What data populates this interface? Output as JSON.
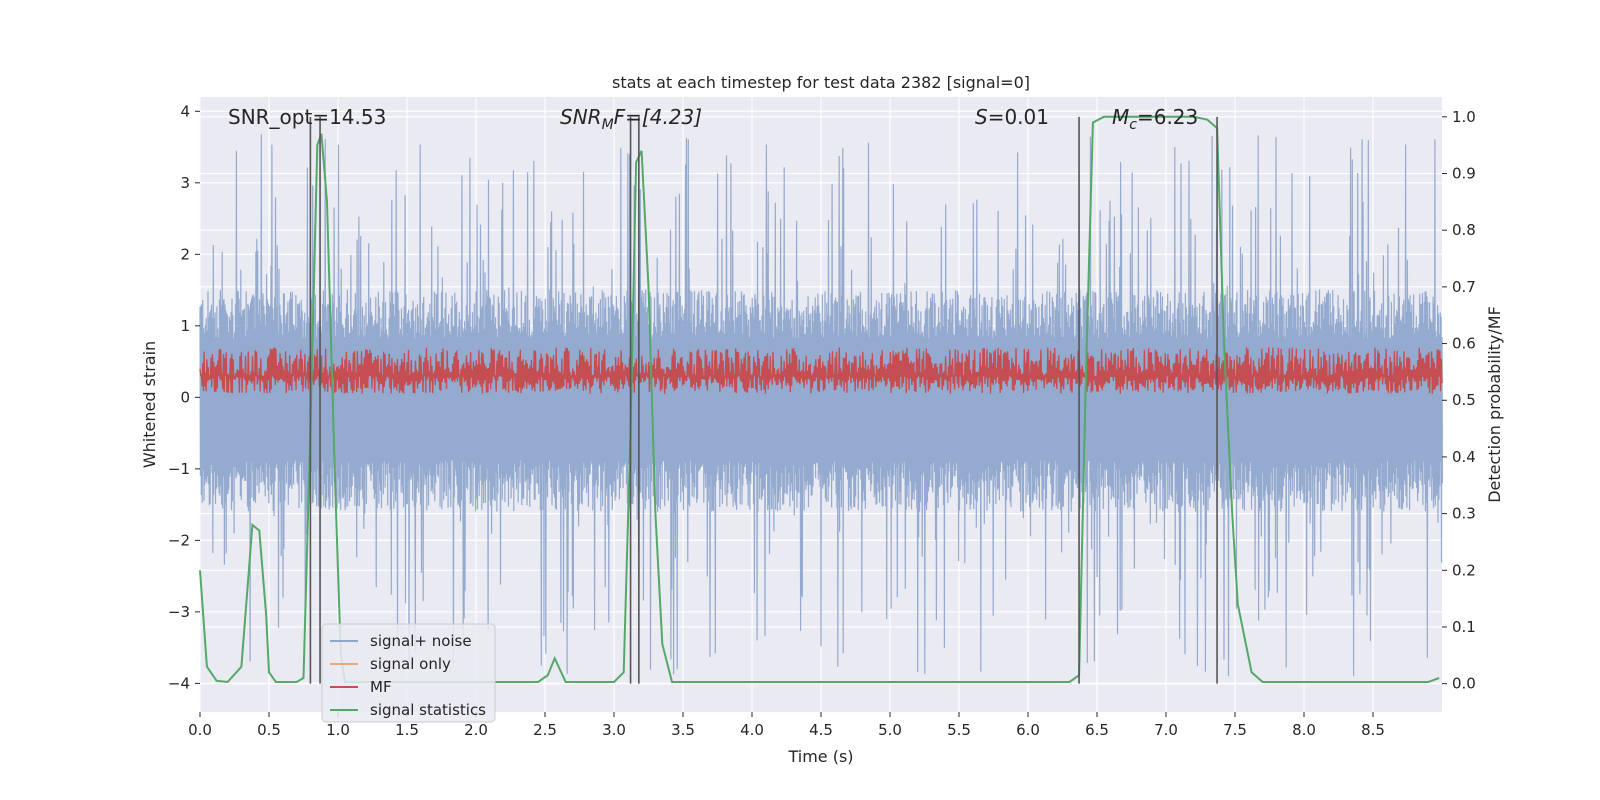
{
  "chart_data": {
    "type": "line",
    "title": "stats at each timestep for test data 2382 [signal=0]",
    "xlabel": "Time (s)",
    "ylabel_left": "Whitened strain",
    "ylabel_right": "Detection probability/MF",
    "xlim": [
      0.0,
      9.0
    ],
    "ylim_left": [
      -4.4,
      4.2
    ],
    "ylim_right": [
      -0.05,
      1.035
    ],
    "x_ticks": [
      "0.0",
      "0.5",
      "1.0",
      "1.5",
      "2.0",
      "2.5",
      "3.0",
      "3.5",
      "4.0",
      "4.5",
      "5.0",
      "5.5",
      "6.0",
      "6.5",
      "7.0",
      "7.5",
      "8.0",
      "8.5"
    ],
    "y_ticks_left": [
      "−4",
      "−3",
      "−2",
      "−1",
      "0",
      "1",
      "2",
      "3",
      "4"
    ],
    "y_ticks_right": [
      "0.0",
      "0.1",
      "0.2",
      "0.3",
      "0.4",
      "0.5",
      "0.6",
      "0.7",
      "0.8",
      "0.9",
      "1.0"
    ],
    "grid": true,
    "legend_placement": "lower-left",
    "annotations": {
      "snr_opt": "SNR_opt=14.53",
      "snr_mf_main": "SNR",
      "snr_mf_sub": "M",
      "snr_mf_rest": "F=[4.23]",
      "s_italic": "S",
      "s_rest": "=0.01",
      "mc_main": "M",
      "mc_sub": "c",
      "mc_rest": "=6.23"
    },
    "vertical_lines_x": [
      0.8,
      0.87,
      3.12,
      3.18,
      6.37,
      7.37
    ],
    "series": [
      {
        "name": "signal+ noise",
        "color": "#8fa6cc",
        "axis": "left",
        "kind": "noise",
        "center": 0.0,
        "typical_min": -1.6,
        "typical_max": 1.5,
        "spike_max": 3.7,
        "spike_min": -3.9
      },
      {
        "name": "signal only",
        "color": "#e8a87c",
        "axis": "left",
        "kind": "flat",
        "value": 0.0
      },
      {
        "name": "MF",
        "color": "#c44e52",
        "axis": "left",
        "kind": "noise",
        "center": 0.3,
        "typical_min": 0.05,
        "typical_max": 0.7
      },
      {
        "name": "signal statistics",
        "color": "#55a868",
        "axis": "right",
        "kind": "line",
        "x": [
          0.0,
          0.05,
          0.12,
          0.2,
          0.3,
          0.38,
          0.43,
          0.48,
          0.5,
          0.55,
          0.6,
          0.7,
          0.75,
          0.8,
          0.85,
          0.88,
          0.92,
          0.98,
          1.02,
          1.05,
          1.1,
          1.2,
          1.5,
          2.0,
          2.45,
          2.52,
          2.57,
          2.65,
          2.75,
          2.9,
          3.0,
          3.07,
          3.12,
          3.16,
          3.2,
          3.25,
          3.3,
          3.35,
          3.42,
          3.5,
          4.0,
          5.0,
          6.0,
          6.3,
          6.37,
          6.42,
          6.47,
          6.55,
          7.0,
          7.2,
          7.3,
          7.37,
          7.42,
          7.48,
          7.52,
          7.62,
          7.7,
          8.0,
          8.5,
          8.9,
          8.98
        ],
        "y": [
          0.2,
          0.03,
          0.005,
          0.003,
          0.03,
          0.28,
          0.27,
          0.12,
          0.02,
          0.003,
          0.003,
          0.003,
          0.01,
          0.45,
          0.95,
          0.97,
          0.85,
          0.35,
          0.05,
          0.003,
          0.003,
          0.003,
          0.003,
          0.003,
          0.003,
          0.015,
          0.045,
          0.003,
          0.003,
          0.003,
          0.003,
          0.02,
          0.45,
          0.92,
          0.94,
          0.7,
          0.3,
          0.07,
          0.003,
          0.003,
          0.003,
          0.003,
          0.003,
          0.003,
          0.015,
          0.55,
          0.99,
          1.0,
          1.0,
          1.0,
          0.995,
          0.98,
          0.6,
          0.3,
          0.14,
          0.02,
          0.003,
          0.003,
          0.003,
          0.003,
          0.01
        ]
      }
    ]
  },
  "legend": {
    "items": [
      {
        "label": "signal+ noise",
        "color": "#8fa6cc"
      },
      {
        "label": "signal only",
        "color": "#e8a87c"
      },
      {
        "label": "MF",
        "color": "#c44e52"
      },
      {
        "label": "signal statistics",
        "color": "#55a868"
      }
    ]
  },
  "colors": {
    "plot_background": "#eaeaf2",
    "grid": "#ffffff",
    "vertical_line": "#555555"
  }
}
